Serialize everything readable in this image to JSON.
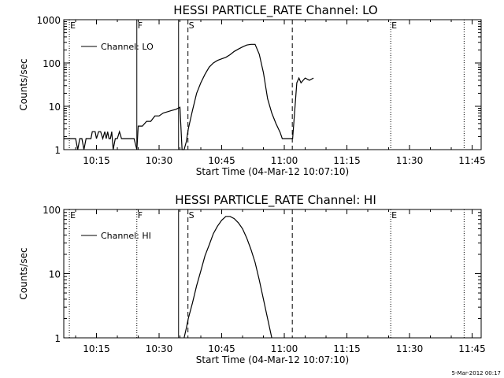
{
  "footer": "5-Mar-2012 00:17",
  "chart_data": [
    {
      "type": "line",
      "title": "HESSI PARTICLE_RATE Channel: LO",
      "xlabel": "Start Time (04-Mar-12 10:07:10)",
      "ylabel": "Counts/sec",
      "y_scale": "log",
      "ylim": [
        1,
        1000
      ],
      "xlim": [
        "10:07:10",
        "11:47:10"
      ],
      "x_ticks": [
        "10:15",
        "10:30",
        "10:45",
        "11:00",
        "11:15",
        "11:30",
        "11:45"
      ],
      "y_ticks": [
        "1",
        "10",
        "100",
        "1000"
      ],
      "grid": false,
      "legend_position": "top-left",
      "series": [
        {
          "name": "Channel: LO",
          "x": [
            "10:07:10",
            "10:10:00",
            "10:10:30",
            "10:11:00",
            "10:11:30",
            "10:12:00",
            "10:12:30",
            "10:13:00",
            "10:13:40",
            "10:14:00",
            "10:14:40",
            "10:15:00",
            "10:15:30",
            "10:16:00",
            "10:16:30",
            "10:17:00",
            "10:17:20",
            "10:17:40",
            "10:18:00",
            "10:18:20",
            "10:18:40",
            "10:19:00",
            "10:19:30",
            "10:20:00",
            "10:20:30",
            "10:21:00",
            "10:23:00",
            "10:24:00",
            "10:24:40",
            "10:25:00",
            "10:26:00",
            "10:27:00",
            "10:28:00",
            "10:29:00",
            "10:30:00",
            "10:31:00",
            "10:32:00",
            "10:33:00",
            "10:34:00",
            "10:35:00",
            "10:35:30",
            "10:36:00",
            "10:36:30",
            "10:37:00",
            "10:38:00",
            "10:39:00",
            "10:40:00",
            "10:41:00",
            "10:42:00",
            "10:43:00",
            "10:44:00",
            "10:45:00",
            "10:46:00",
            "10:47:00",
            "10:48:00",
            "10:49:00",
            "10:50:00",
            "10:51:00",
            "10:52:00",
            "10:53:00",
            "10:54:00",
            "10:55:00",
            "10:56:00",
            "10:57:00",
            "10:58:00",
            "10:59:00",
            "10:59:30",
            "11:00:00",
            "11:02:00",
            "11:03:00",
            "11:03:30",
            "11:04:00",
            "11:05:00",
            "11:06:00",
            "11:07:00"
          ],
          "y": [
            1.8,
            1.8,
            1,
            1.8,
            1.8,
            1,
            1.8,
            1.8,
            1.8,
            2.6,
            2.6,
            1.8,
            2.6,
            2.6,
            1.8,
            2.6,
            1.8,
            2.6,
            1.8,
            1.8,
            2.6,
            1,
            1.8,
            1.8,
            2.6,
            1.8,
            1.8,
            1.8,
            1,
            3.5,
            3.5,
            4.5,
            4.5,
            6,
            6,
            7,
            7.5,
            8,
            8.5,
            9.5,
            1,
            1,
            1.5,
            3,
            8,
            20,
            35,
            55,
            80,
            100,
            115,
            125,
            135,
            155,
            185,
            210,
            235,
            260,
            270,
            270,
            160,
            60,
            15,
            7,
            4,
            2.5,
            1.8,
            1.8,
            1.8,
            35,
            45,
            35,
            45,
            40,
            45
          ]
        }
      ],
      "markers": [
        {
          "label": "E",
          "x": "10:08:30",
          "style": "dotted"
        },
        {
          "label": "F",
          "x": "10:24:40",
          "style": "solid"
        },
        {
          "label": "",
          "x": "10:34:40",
          "style": "solid"
        },
        {
          "label": "S",
          "x": "10:36:55",
          "style": "dashed"
        },
        {
          "label": "",
          "x": "11:01:55",
          "style": "dashed"
        },
        {
          "label": "E",
          "x": "11:25:30",
          "style": "dotted"
        },
        {
          "label": "",
          "x": "11:43:05",
          "style": "dotted"
        }
      ]
    },
    {
      "type": "line",
      "title": "HESSI PARTICLE_RATE Channel: HI",
      "xlabel": "Start Time (04-Mar-12 10:07:10)",
      "ylabel": "Counts/sec",
      "y_scale": "log",
      "ylim": [
        1,
        100
      ],
      "xlim": [
        "10:07:10",
        "11:47:10"
      ],
      "x_ticks": [
        "10:15",
        "10:30",
        "10:45",
        "11:00",
        "11:15",
        "11:30",
        "11:45"
      ],
      "y_ticks": [
        "1",
        "10",
        "100"
      ],
      "grid": false,
      "legend_position": "top-left",
      "series": [
        {
          "name": "Channel: HI",
          "x": [
            "10:36:00",
            "10:36:30",
            "10:37:00",
            "10:38:00",
            "10:39:00",
            "10:40:00",
            "10:41:00",
            "10:42:00",
            "10:43:00",
            "10:44:00",
            "10:45:00",
            "10:46:00",
            "10:47:00",
            "10:48:00",
            "10:49:00",
            "10:50:00",
            "10:51:00",
            "10:52:00",
            "10:53:00",
            "10:54:00",
            "10:55:00",
            "10:56:00",
            "10:57:00"
          ],
          "y": [
            1,
            1.4,
            2,
            3.5,
            6.5,
            11,
            19,
            28,
            42,
            55,
            68,
            78,
            78,
            72,
            62,
            50,
            36,
            24,
            15,
            8,
            4,
            2,
            1
          ]
        }
      ],
      "markers": [
        {
          "label": "E",
          "x": "10:08:30",
          "style": "dotted"
        },
        {
          "label": "F",
          "x": "10:24:40",
          "style": "dotted"
        },
        {
          "label": "",
          "x": "10:34:40",
          "style": "solid"
        },
        {
          "label": "S",
          "x": "10:36:55",
          "style": "dashed"
        },
        {
          "label": "",
          "x": "11:01:55",
          "style": "dashed"
        },
        {
          "label": "E",
          "x": "11:25:30",
          "style": "dotted"
        },
        {
          "label": "",
          "x": "11:43:05",
          "style": "dotted"
        }
      ]
    }
  ]
}
